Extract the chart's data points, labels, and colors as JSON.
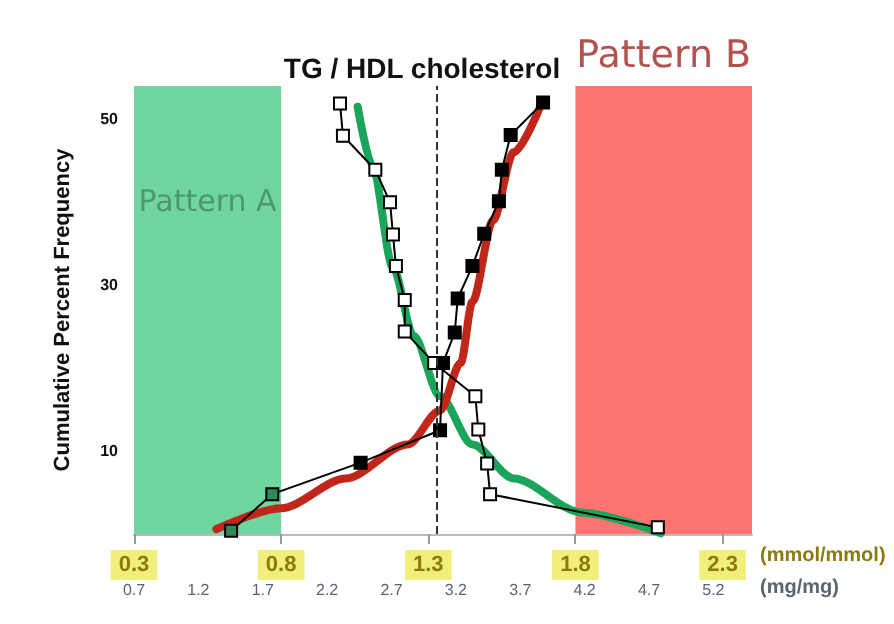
{
  "chart_data": {
    "type": "line",
    "title": "TG / HDL cholesterol",
    "ylabel": "Cumulative Percent Frequency",
    "xlabel": "(mmol/mmol)",
    "x2label": "(mg/mg)",
    "xlim": [
      0.3,
      2.4
    ],
    "xticks": [
      0.3,
      0.8,
      1.3,
      1.8,
      2.3
    ],
    "x2lim": [
      0.7,
      5.5
    ],
    "x2ticks": [
      0.7,
      1.2,
      1.7,
      2.2,
      2.7,
      3.2,
      3.7,
      4.2,
      4.7,
      5.2
    ],
    "ylim": [
      0,
      54
    ],
    "yticks": [
      10,
      30,
      50
    ],
    "bands": [
      {
        "axis": "x",
        "from": 0.3,
        "to": 0.8,
        "label": "Pattern A",
        "color": "#6fd6a0"
      },
      {
        "axis": "x",
        "from": 1.8,
        "to": 2.4,
        "label": "Pattern B",
        "color": "#ff7470"
      }
    ],
    "ref_lines": [
      {
        "axis": "x",
        "value": 1.33,
        "line_style": "dashed",
        "color": "#333333"
      }
    ],
    "series": [
      {
        "color": "#000000",
        "marker": "square",
        "colors": [
          "#ffffff",
          "#ffffff",
          "#ffffff",
          "#ffffff",
          "#ffffff",
          "#ffffff",
          "#ffffff",
          "#ffffff",
          "#ffffff",
          "#ffffff",
          "#ffffff",
          "#ffffff",
          "#ffffff",
          "#ffffff"
        ],
        "x": [
          1.0,
          1.01,
          1.12,
          1.17,
          1.18,
          1.19,
          1.22,
          1.22,
          1.32,
          1.46,
          1.47,
          1.5,
          1.51,
          2.08
        ],
        "values": [
          51.9,
          48.0,
          43.9,
          40.0,
          36.1,
          32.3,
          28.2,
          24.4,
          20.6,
          16.6,
          12.6,
          8.5,
          4.8,
          0.8
        ]
      },
      {
        "color": "#000000",
        "marker": "square",
        "colors": [
          "#2e8b57",
          "#2e8b57",
          "#000000",
          "#000000",
          "#000000",
          "#000000",
          "#000000",
          "#000000",
          "#000000",
          "#000000",
          "#000000",
          "#000000",
          "#000000"
        ],
        "x": [
          0.63,
          0.77,
          1.07,
          1.34,
          1.35,
          1.39,
          1.4,
          1.45,
          1.49,
          1.54,
          1.55,
          1.58,
          1.69
        ],
        "values": [
          0.4,
          4.8,
          8.6,
          12.5,
          20.6,
          24.3,
          28.4,
          32.3,
          36.2,
          40.1,
          43.9,
          48.1,
          52.0
        ]
      },
      {
        "color": "#1aa55a",
        "marker": "none",
        "x": [
          1.06,
          1.11,
          1.18,
          1.25,
          1.34,
          1.45,
          1.59,
          1.82,
          2.09
        ],
        "values": [
          51.5,
          44.4,
          32.1,
          23.9,
          16.6,
          10.8,
          6.7,
          2.6,
          0.1
        ]
      },
      {
        "color": "#c0261a",
        "marker": "none",
        "x": [
          0.58,
          0.8,
          1.02,
          1.23,
          1.34,
          1.41,
          1.45,
          1.52,
          1.59,
          1.68
        ],
        "values": [
          0.6,
          3.1,
          6.7,
          10.8,
          14.9,
          20.6,
          28.0,
          37.8,
          46.0,
          51.5
        ]
      }
    ]
  }
}
